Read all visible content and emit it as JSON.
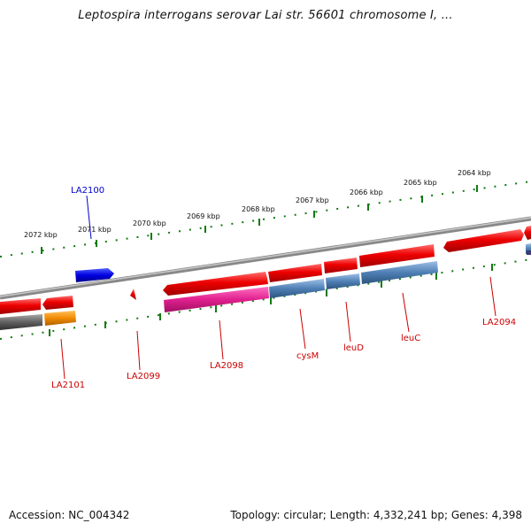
{
  "title": "Leptospira interrogans serovar Lai str. 56601 chromosome I, ...",
  "footer": {
    "accession": "Accession: NC_004342",
    "topology": "Topology: circular; Length: 4,332,241 bp; Genes: 4,398"
  },
  "scale_labels": [
    "2072 kbp",
    "2071 kbp",
    "2070 kbp",
    "2069 kbp",
    "2068 kbp",
    "2067 kbp",
    "2066 kbp",
    "2065 kbp",
    "2064 kbp"
  ],
  "gene_labels": {
    "LA2100": "LA2100",
    "LA2101": "LA2101",
    "LA2099": "LA2099",
    "LA2098": "LA2098",
    "cysM": "cysM",
    "leuD": "leuD",
    "leuC": "leuC",
    "LA2094": "LA2094"
  },
  "colors": {
    "cds_red": "#e00000",
    "cds_blue": "#0000dd",
    "gene_pink": "#e0208f",
    "gene_steelblue": "#4f7fb5",
    "gene_orange": "#f08c00",
    "gene_gray": "#606060",
    "tick_green": "#117a11",
    "backbone": "#888888",
    "label_red": "#cc0000",
    "label_blue": "#0000cc"
  }
}
